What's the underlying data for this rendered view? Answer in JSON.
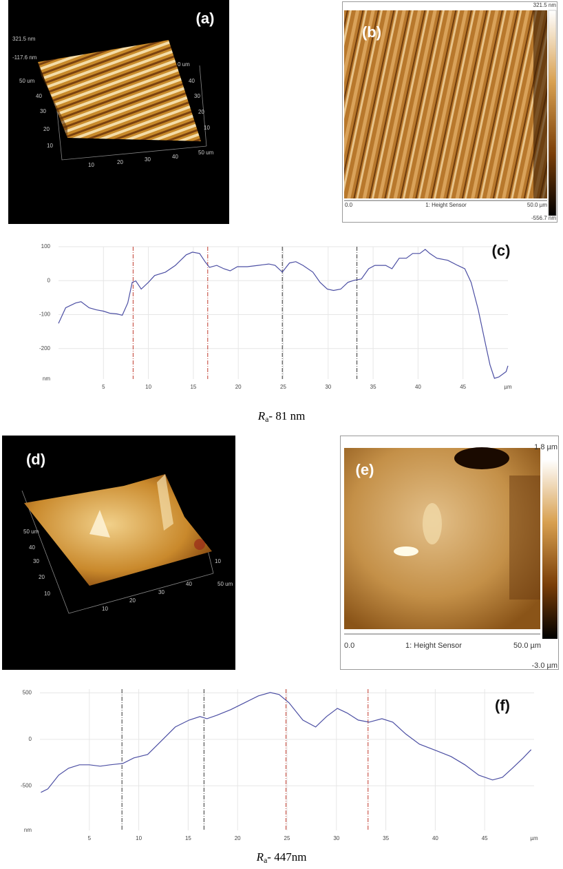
{
  "panel_a": {
    "label": "(a)",
    "scale_top": "321.5 nm",
    "scale_bottom": "-117.6 nm",
    "axis_left": [
      "50 um",
      "40",
      "30",
      "20",
      "10"
    ],
    "axis_bottom": [
      "10",
      "20",
      "30",
      "40",
      "50 um"
    ],
    "axis_right": [
      "0 um",
      "40",
      "30",
      "20",
      "10"
    ]
  },
  "panel_b": {
    "label": "(b)",
    "scale_max": "321.5 nm",
    "scale_min": "-556.7 nm",
    "x_start": "0.0",
    "channel": "1: Height Sensor",
    "x_end": "50.0 µm"
  },
  "panel_d": {
    "label": "(d)",
    "axis_left": [
      "50 um",
      "40",
      "30",
      "20",
      "10"
    ],
    "axis_bottom": [
      "10",
      "20",
      "30",
      "40"
    ],
    "axis_right": [
      "10",
      "50 um"
    ]
  },
  "panel_e": {
    "label": "(e)",
    "scale_max": "1.8 µm",
    "scale_min": "-3.0 µm",
    "x_start": "0.0",
    "channel": "1: Height Sensor",
    "x_end": "50.0 µm"
  },
  "captions": [
    {
      "symbol": "R",
      "subscript": "a",
      "text": "- 81 nm"
    },
    {
      "symbol": "R",
      "subscript": "a",
      "text": "- 447nm"
    }
  ],
  "chart_data": [
    {
      "type": "line",
      "title": "(c)",
      "x_label": "µm",
      "y_label": "nm",
      "grid": true,
      "xlim": [
        0,
        50
      ],
      "ylim": [
        -290,
        100
      ],
      "xticks": [
        5,
        10,
        15,
        20,
        25,
        30,
        35,
        40,
        45
      ],
      "yticks": [
        -200,
        -100,
        0,
        100
      ],
      "x": [
        0,
        0.8,
        1.9,
        2.5,
        3.4,
        4.2,
        5.0,
        5.7,
        6.5,
        7.1,
        7.7,
        8.2,
        8.6,
        9.2,
        10.0,
        10.7,
        11.9,
        13.0,
        14.2,
        14.9,
        15.7,
        16.3,
        16.8,
        17.6,
        18.4,
        19.1,
        19.9,
        21.0,
        22.2,
        23.4,
        24.1,
        24.9,
        25.7,
        26.4,
        27.2,
        28.3,
        29.1,
        29.9,
        30.6,
        31.4,
        32.2,
        32.9,
        33.7,
        34.5,
        35.2,
        36.4,
        37.1,
        37.9,
        38.7,
        39.4,
        40.2,
        40.8,
        41.3,
        42.1,
        43.3,
        44.4,
        45.2,
        45.9,
        46.7,
        47.5,
        48.0,
        48.5,
        49.0,
        49.8,
        50.0
      ],
      "series": [
        {
          "color": "#4b4ea3",
          "values": [
            -126,
            -80,
            -66,
            -62,
            -80,
            -86,
            -90,
            -96,
            -98,
            -102,
            -66,
            -5,
            -1,
            -25,
            -5,
            15,
            25,
            45,
            76,
            84,
            80,
            56,
            39,
            45,
            35,
            29,
            41,
            41,
            45,
            49,
            45,
            25,
            52,
            56,
            45,
            25,
            -5,
            -25,
            -29,
            -25,
            -5,
            1,
            5,
            35,
            45,
            45,
            35,
            66,
            66,
            80,
            80,
            92,
            80,
            66,
            60,
            45,
            35,
            -5,
            -86,
            -187,
            -248,
            -288,
            -284,
            -268,
            -251
          ]
        }
      ],
      "vlines": [
        {
          "x": 8.3,
          "color": "#c0392b"
        },
        {
          "x": 16.6,
          "color": "#c0392b"
        },
        {
          "x": 24.9,
          "color": "#333333"
        },
        {
          "x": 33.2,
          "color": "#333333"
        }
      ]
    },
    {
      "type": "line",
      "title": "(f)",
      "x_label": "µm",
      "y_label": "nm",
      "grid": true,
      "xlim": [
        0,
        50
      ],
      "ylim": [
        -980,
        540
      ],
      "xticks": [
        5,
        10,
        15,
        20,
        25,
        30,
        35,
        40,
        45
      ],
      "yticks": [
        -500,
        0,
        500
      ],
      "x": [
        0.1,
        0.8,
        1.9,
        2.9,
        4.0,
        5.0,
        6.1,
        7.1,
        8.4,
        9.5,
        10.9,
        12.3,
        13.7,
        15.1,
        16.2,
        16.9,
        17.9,
        19.3,
        20.7,
        22.1,
        23.3,
        24.2,
        25.2,
        26.6,
        27.9,
        29.0,
        30.1,
        31.1,
        32.2,
        33.3,
        34.6,
        35.7,
        37.0,
        38.4,
        40.2,
        41.6,
        43.0,
        44.4,
        45.8,
        46.8,
        47.8,
        48.9,
        49.7
      ],
      "series": [
        {
          "color": "#4b4ea3",
          "values": [
            -571,
            -534,
            -385,
            -311,
            -274,
            -274,
            -289,
            -274,
            -259,
            -200,
            -163,
            -15,
            133,
            207,
            245,
            222,
            259,
            319,
            393,
            467,
            504,
            482,
            393,
            207,
            133,
            245,
            333,
            282,
            207,
            185,
            222,
            185,
            59,
            -52,
            -126,
            -185,
            -274,
            -385,
            -437,
            -408,
            -311,
            -200,
            -111
          ]
        }
      ],
      "vlines": [
        {
          "x": 8.3,
          "color": "#333333"
        },
        {
          "x": 16.6,
          "color": "#333333"
        },
        {
          "x": 24.9,
          "color": "#c0392b"
        },
        {
          "x": 33.2,
          "color": "#c0392b"
        }
      ]
    }
  ]
}
